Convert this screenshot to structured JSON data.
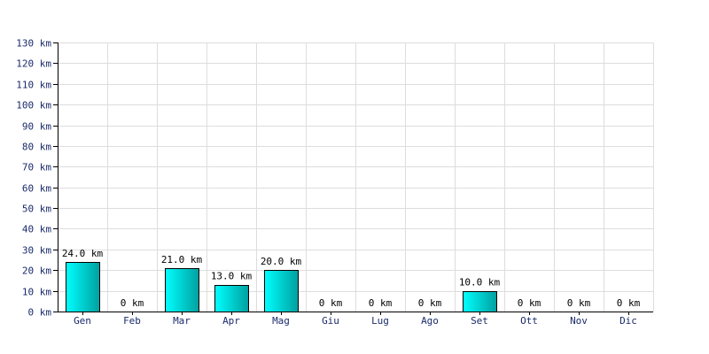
{
  "chart_data": {
    "type": "bar",
    "categories": [
      "Gen",
      "Feb",
      "Mar",
      "Apr",
      "Mag",
      "Giu",
      "Lug",
      "Ago",
      "Set",
      "Ott",
      "Nov",
      "Dic"
    ],
    "values": [
      24,
      0,
      21,
      13,
      20,
      0,
      0,
      0,
      10,
      0,
      0,
      0
    ],
    "data_labels": [
      "24.0 km",
      "0 km",
      "21.0 km",
      "13.0 km",
      "20.0 km",
      "0 km",
      "0 km",
      "0 km",
      "10.0 km",
      "0 km",
      "0 km",
      "0 km"
    ],
    "unit": "km",
    "ylim": [
      0,
      130
    ],
    "ytick_step": 10,
    "yticks": [
      "0 km",
      "10 km",
      "20 km",
      "30 km",
      "40 km",
      "50 km",
      "60 km",
      "70 km",
      "80 km",
      "90 km",
      "100 km",
      "110 km",
      "120 km",
      "130 km"
    ],
    "title": "",
    "xlabel": "",
    "ylabel": "",
    "grid": true,
    "legend": "none",
    "colors": {
      "bar_light": "#00ffff",
      "bar_dark": "#00a0a0",
      "grid": "#dddddd",
      "axis": "#000000",
      "tick_text": "#1a2a6c"
    }
  }
}
